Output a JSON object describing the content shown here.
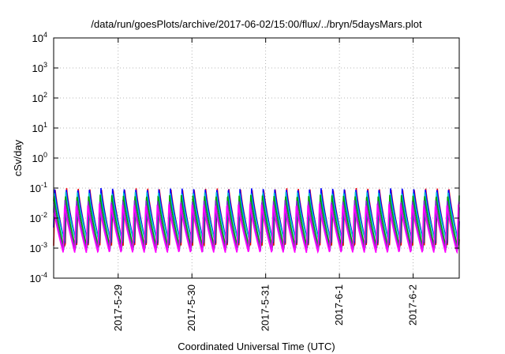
{
  "chart_data": {
    "type": "line",
    "title": "/data/run/goesPlots/archive/2017-06-02/15:00/flux/../bryn/5daysMars.plot",
    "xlabel": "Coordinated Universal Time (UTC)",
    "ylabel": "cSv/day",
    "yscale": "log",
    "ylim": [
      0.0001,
      10000
    ],
    "y_ticks": [
      {
        "value": 0.0001,
        "base": "10",
        "exp": "-4"
      },
      {
        "value": 0.001,
        "base": "10",
        "exp": "-3"
      },
      {
        "value": 0.01,
        "base": "10",
        "exp": "-2"
      },
      {
        "value": 0.1,
        "base": "10",
        "exp": "-1"
      },
      {
        "value": 1,
        "base": "10",
        "exp": "0"
      },
      {
        "value": 10,
        "base": "10",
        "exp": "1"
      },
      {
        "value": 100,
        "base": "10",
        "exp": "2"
      },
      {
        "value": 1000,
        "base": "10",
        "exp": "3"
      },
      {
        "value": 10000,
        "base": "10",
        "exp": "4"
      }
    ],
    "xlim": [
      "2017-05-28 03:00",
      "2017-06-02 15:00"
    ],
    "x_ticks": [
      {
        "value": "2017-05-29 00:00",
        "label": "2017-5-29"
      },
      {
        "value": "2017-05-30 00:00",
        "label": "2017-5-30"
      },
      {
        "value": "2017-05-31 00:00",
        "label": "2017-5-31"
      },
      {
        "value": "2017-06-01 00:00",
        "label": "2017-6-1"
      },
      {
        "value": "2017-06-02 00:00",
        "label": "2017-6-2"
      }
    ],
    "grid": true,
    "oscillation_period_hours": 3.77,
    "series": [
      {
        "color": "#ff0000",
        "peak": 0.1,
        "trough": 0.0012
      },
      {
        "color": "#0000ff",
        "peak": 0.1,
        "trough": 0.0014
      },
      {
        "color": "#00bcd4",
        "peak": 0.075,
        "trough": 0.0016
      },
      {
        "color": "#00a000",
        "peak": 0.06,
        "trough": 0.001
      },
      {
        "color": "#7a2fc8",
        "peak": 0.04,
        "trough": 0.0008
      },
      {
        "color": "#ff00ff",
        "peak": 0.03,
        "trough": 0.0007
      }
    ]
  }
}
